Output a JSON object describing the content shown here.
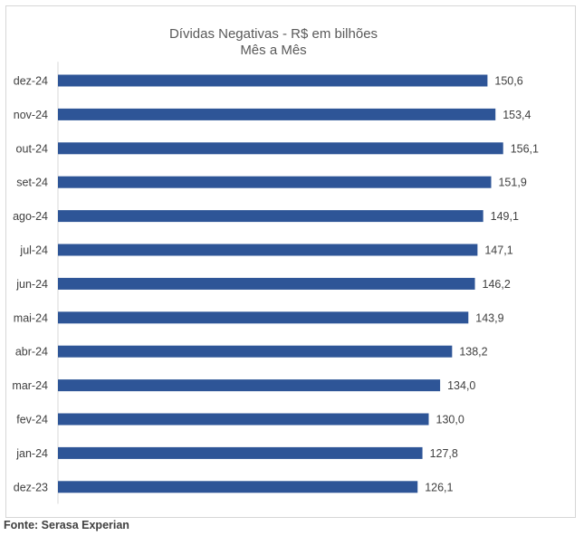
{
  "chart_data": {
    "type": "bar",
    "orientation": "horizontal",
    "title": "Dívidas Negativas - R$ em bilhões",
    "subtitle": "Mês a Mês",
    "categories": [
      "dez-24",
      "nov-24",
      "out-24",
      "set-24",
      "ago-24",
      "jul-24",
      "jun-24",
      "mai-24",
      "abr-24",
      "mar-24",
      "fev-24",
      "jan-24",
      "dez-23"
    ],
    "values": [
      150.6,
      153.4,
      156.1,
      151.9,
      149.1,
      147.1,
      146.2,
      143.9,
      138.2,
      134.0,
      130.0,
      127.8,
      126.1
    ],
    "value_labels": [
      "150,6",
      "153,4",
      "156,1",
      "151,9",
      "149,1",
      "147,1",
      "146,2",
      "143,9",
      "138,2",
      "134,0",
      "130,0",
      "127,8",
      "126,1"
    ],
    "xlim": [
      0,
      180
    ],
    "grid": false,
    "legend": "none",
    "bar_color": "#2e5597"
  },
  "source": "Fonte: Serasa Experian"
}
